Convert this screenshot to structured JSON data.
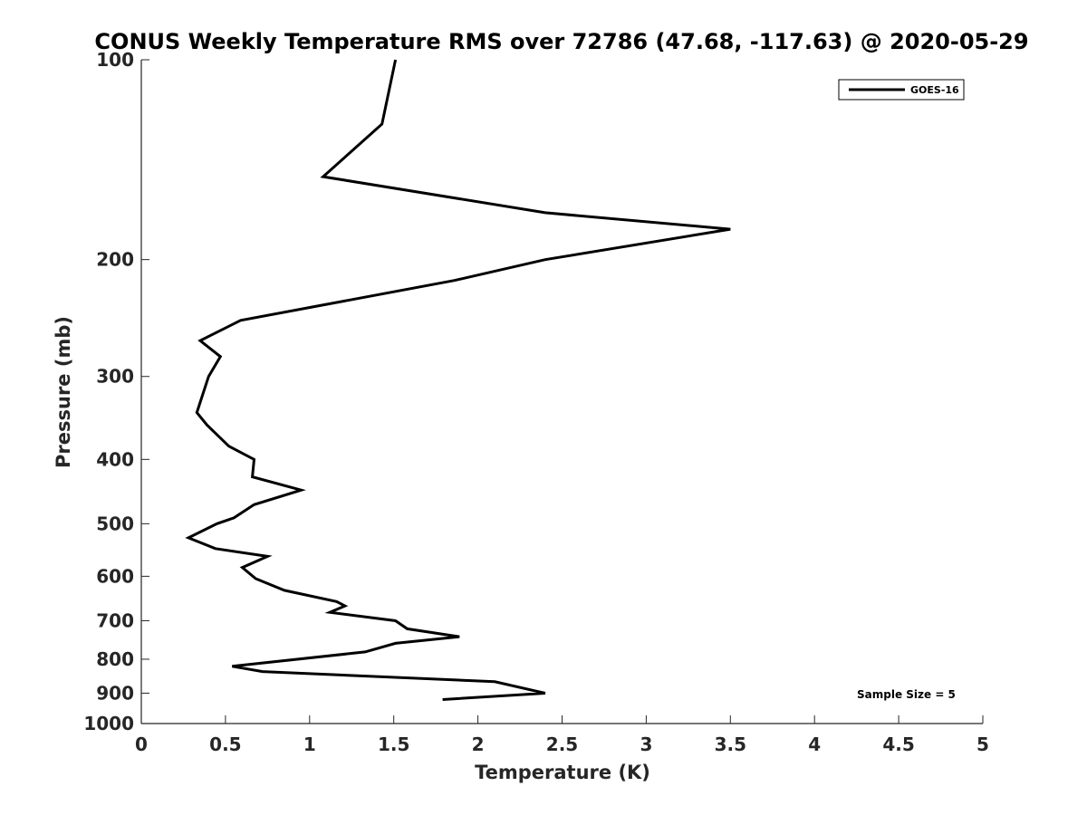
{
  "chart_data": {
    "type": "line",
    "title": "CONUS Weekly Temperature RMS over 72786 (47.68, -117.63) @ 2020-05-29",
    "xlabel": "Temperature (K)",
    "ylabel": "Pressure (mb)",
    "xlim": [
      0,
      5
    ],
    "ylim": [
      100,
      1000
    ],
    "y_scale": "log",
    "y_reversed": true,
    "x_ticks": [
      0,
      0.5,
      1,
      1.5,
      2,
      2.5,
      3,
      3.5,
      4,
      4.5,
      5
    ],
    "x_tick_labels": [
      "0",
      "0.5",
      "1",
      "1.5",
      "2",
      "2.5",
      "3",
      "3.5",
      "4",
      "4.5",
      "5"
    ],
    "y_ticks": [
      100,
      200,
      300,
      400,
      500,
      600,
      700,
      800,
      900,
      1000
    ],
    "y_tick_labels": [
      "100",
      "200",
      "300",
      "400",
      "500",
      "600",
      "700",
      "800",
      "900",
      "1000"
    ],
    "grid": false,
    "legend_position": "top-right",
    "annotation": "Sample Size = 5",
    "series": [
      {
        "name": "GOES-16",
        "color": "#000000",
        "points": [
          [
            1.51,
            100
          ],
          [
            1.43,
            125
          ],
          [
            1.08,
            150
          ],
          [
            2.4,
            170
          ],
          [
            3.5,
            180
          ],
          [
            2.4,
            200
          ],
          [
            1.86,
            215
          ],
          [
            0.59,
            247
          ],
          [
            0.35,
            265
          ],
          [
            0.47,
            280
          ],
          [
            0.4,
            300
          ],
          [
            0.33,
            340
          ],
          [
            0.39,
            355
          ],
          [
            0.52,
            382
          ],
          [
            0.67,
            400
          ],
          [
            0.66,
            425
          ],
          [
            0.95,
            445
          ],
          [
            0.67,
            468
          ],
          [
            0.55,
            490
          ],
          [
            0.45,
            500
          ],
          [
            0.28,
            525
          ],
          [
            0.44,
            545
          ],
          [
            0.75,
            560
          ],
          [
            0.6,
            582
          ],
          [
            0.68,
            605
          ],
          [
            0.85,
            630
          ],
          [
            1.16,
            655
          ],
          [
            1.21,
            665
          ],
          [
            1.12,
            680
          ],
          [
            1.51,
            700
          ],
          [
            1.58,
            720
          ],
          [
            1.89,
            740
          ],
          [
            1.51,
            757
          ],
          [
            1.33,
            780
          ],
          [
            0.54,
            820
          ],
          [
            0.72,
            835
          ],
          [
            2.1,
            865
          ],
          [
            2.4,
            900
          ],
          [
            1.79,
            920
          ]
        ]
      }
    ]
  }
}
